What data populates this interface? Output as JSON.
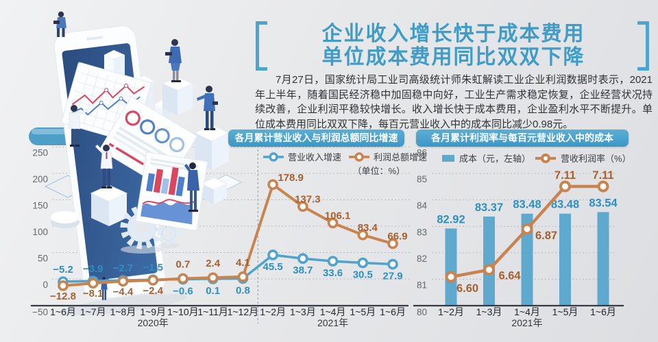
{
  "header": {
    "title_line1": "企业收入增长快于成本费用",
    "title_line2": "单位成本费用同比双双下降",
    "paragraph": "7月27日，国家统计局工业司高级统计师朱虹解读工业企业利润数据时表示，2021年上半年，随着国民经济稳中加固稳中向好，工业生产需求稳定恢复，企业经营状况持续改善，企业利润平稳较快增长。收入增长快于成本费用，企业盈利水平不断提升。单位成本费用同比双双下降，每百元营业收入中的成本同比减少0.98元。"
  },
  "colors": {
    "title_blue": "#3E9CC9",
    "badge_blue": "#459FCB",
    "line_blue": "#4FA3CD",
    "line_orange": "#C9834E",
    "bar_blue": "#5FA9CF",
    "label_blue": "#2E8FC0",
    "label_orange": "#A7602F"
  },
  "chart_data": [
    {
      "type": "line",
      "title": "各月累计营业收入与利润总额同比增速",
      "unit_label": "（单位：%）",
      "categories": [
        "1~6月",
        "1~7月",
        "1~8月",
        "1~9月",
        "1~10月",
        "1~11月",
        "1~12月",
        "1~2月",
        "1~3月",
        "1~4月",
        "1~5月",
        "1~6月"
      ],
      "year_groups": [
        {
          "label": "2020年",
          "center_index": 3
        },
        {
          "label": "2021年",
          "center_index": 9
        }
      ],
      "separator_after_index": 6,
      "series": [
        {
          "name": "营业收入增速",
          "color": "#4FA3CD",
          "label_color": "#2E8FC0",
          "values": [
            -5.2,
            -3.9,
            -2.7,
            -1.5,
            -0.6,
            0.1,
            0.8,
            45.5,
            38.7,
            33.6,
            30.5,
            27.9
          ]
        },
        {
          "name": "利润总额增速",
          "color": "#C9834E",
          "label_color": "#A7602F",
          "values": [
            -12.8,
            -8.1,
            -4.4,
            -2.4,
            0.7,
            2.4,
            4.1,
            178.9,
            137.3,
            106.1,
            83.4,
            66.9
          ]
        }
      ],
      "y_axis": {
        "min": -50,
        "max": 250,
        "step": 50,
        "gridline_values": [
          250,
          200,
          150,
          100,
          50,
          0
        ],
        "axis_value": -50,
        "grid": true,
        "legend_position": "top"
      }
    },
    {
      "type": "bar+line",
      "title": "各月累计利润率与每百元营业收入中的成本",
      "categories": [
        "1~2月",
        "1~3月",
        "1~4月",
        "1~5月",
        "1~6月"
      ],
      "year_label": "2021年",
      "year_center_index": 2,
      "bar_series": {
        "name": "成本（元，左轴）",
        "color": "#5FA9CF",
        "label_color": "#2E8FC0",
        "values": [
          "82.92",
          "83.37",
          "83.48",
          "83.48",
          "83.54"
        ]
      },
      "line_series": {
        "name": "营收利润率（%）",
        "color": "#C9834E",
        "label_color": "#A7602F",
        "values": [
          "6.60",
          "6.64",
          "6.87",
          "7.11",
          "7.11"
        ]
      },
      "y_axis_left": {
        "min": 80,
        "max": 86,
        "step": 1,
        "grid": true,
        "legend_position": "top"
      }
    }
  ]
}
